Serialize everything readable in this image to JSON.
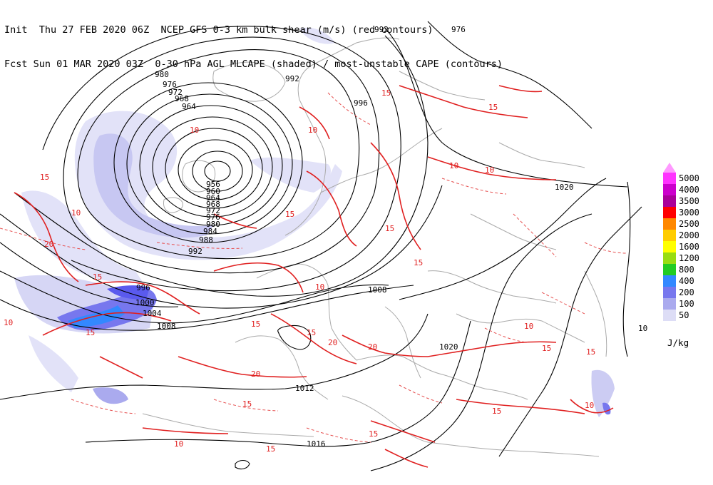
{
  "header": {
    "line1": "Init  Thu 27 FEB 2020 06Z  NCEP GFS 0-3 km bulk shear (m/s) (red contours)",
    "line2": "Fcst Sun 01 MAR 2020 03Z  0-30 hPa AGL MLCAPE (shaded) / most-unstable CAPE (contours)"
  },
  "legend": {
    "units": "J/kg",
    "items": [
      {
        "label": "5000",
        "color": "#ff33ff"
      },
      {
        "label": "4000",
        "color": "#cc00cc"
      },
      {
        "label": "3500",
        "color": "#aa0099"
      },
      {
        "label": "3000",
        "color": "#ff0000"
      },
      {
        "label": "2500",
        "color": "#ff8800"
      },
      {
        "label": "2000",
        "color": "#ffcc00"
      },
      {
        "label": "1600",
        "color": "#ffff00"
      },
      {
        "label": "1200",
        "color": "#99dd11"
      },
      {
        "label": "800",
        "color": "#22cc22"
      },
      {
        "label": "400",
        "color": "#3388ff"
      },
      {
        "label": "200",
        "color": "#7777ee"
      },
      {
        "label": "100",
        "color": "#aaaaee"
      },
      {
        "label": "50",
        "color": "#ddddf6"
      }
    ]
  },
  "pressure_labels": [
    "976",
    "980",
    "976",
    "972",
    "968",
    "964",
    "992",
    "992",
    "996",
    "956",
    "960",
    "964",
    "968",
    "972",
    "976",
    "980",
    "984",
    "988",
    "992",
    "996",
    "1000",
    "1004",
    "1008",
    "1008",
    "1012",
    "1016",
    "1020",
    "1020",
    "10"
  ],
  "shear_labels": [
    "15",
    "15",
    "10",
    "10",
    "15",
    "20",
    "15",
    "10",
    "10",
    "15",
    "15",
    "20",
    "15",
    "10",
    "15",
    "15",
    "20",
    "10",
    "15",
    "15",
    "20",
    "10",
    "15",
    "15",
    "10",
    "10",
    "15",
    "15",
    "10",
    "15"
  ],
  "colors": {
    "isobar": "#000000",
    "shear": "#e02020",
    "coast": "#aaaaaa"
  }
}
